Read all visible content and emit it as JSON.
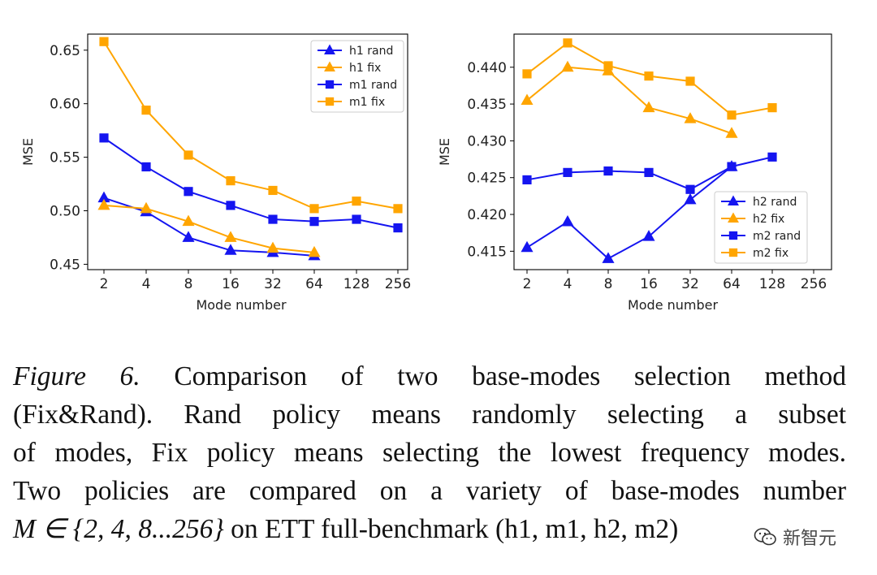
{
  "chart_data": [
    {
      "type": "line",
      "xlabel": "Mode number",
      "ylabel": "MSE",
      "categories": [
        "2",
        "4",
        "8",
        "16",
        "32",
        "64",
        "128",
        "256"
      ],
      "ylim": [
        0.445,
        0.665
      ],
      "yticks": [
        "0.45",
        "0.50",
        "0.55",
        "0.60",
        "0.65"
      ],
      "ytick_values": [
        0.45,
        0.5,
        0.55,
        0.6,
        0.65
      ],
      "legend_position": "top-right",
      "series": [
        {
          "name": "h1 rand",
          "color": "#1515f0",
          "marker": "triangle",
          "values": [
            0.512,
            0.499,
            0.475,
            0.463,
            0.461,
            0.458,
            null,
            null
          ]
        },
        {
          "name": "h1 fix",
          "color": "#ffa500",
          "marker": "triangle",
          "values": [
            0.505,
            0.502,
            0.49,
            0.475,
            0.465,
            0.461,
            null,
            null
          ]
        },
        {
          "name": "m1 rand",
          "color": "#1515f0",
          "marker": "square",
          "values": [
            0.568,
            0.541,
            0.518,
            0.505,
            0.492,
            0.49,
            0.492,
            0.484
          ]
        },
        {
          "name": "m1 fix",
          "color": "#ffa500",
          "marker": "square",
          "values": [
            0.658,
            0.594,
            0.552,
            0.528,
            0.519,
            0.502,
            0.509,
            0.502
          ]
        }
      ]
    },
    {
      "type": "line",
      "xlabel": "Mode number",
      "ylabel": "MSE",
      "categories": [
        "2",
        "4",
        "8",
        "16",
        "32",
        "64",
        "128",
        "256"
      ],
      "ylim": [
        0.4125,
        0.4445
      ],
      "yticks": [
        "0.415",
        "0.420",
        "0.425",
        "0.430",
        "0.435",
        "0.440"
      ],
      "ytick_values": [
        0.415,
        0.42,
        0.425,
        0.43,
        0.435,
        0.44
      ],
      "legend_position": "lower-right",
      "series": [
        {
          "name": "h2 rand",
          "color": "#1515f0",
          "marker": "triangle",
          "values": [
            0.4155,
            0.419,
            0.414,
            0.417,
            0.422,
            0.4265,
            null,
            null
          ]
        },
        {
          "name": "h2 fix",
          "color": "#ffa500",
          "marker": "triangle",
          "values": [
            0.4355,
            0.44,
            0.4395,
            0.4345,
            0.433,
            0.431,
            null,
            null
          ]
        },
        {
          "name": "m2 rand",
          "color": "#1515f0",
          "marker": "square",
          "values": [
            0.4247,
            0.4257,
            0.4259,
            0.4257,
            0.4234,
            0.4265,
            0.4278,
            null
          ]
        },
        {
          "name": "m2 fix",
          "color": "#ffa500",
          "marker": "square",
          "values": [
            0.4391,
            0.4433,
            0.4402,
            0.4388,
            0.4381,
            0.4335,
            0.4345,
            null
          ]
        }
      ]
    }
  ],
  "caption": {
    "figure_label": "Figure 6.",
    "line1_rest": "Comparison of two base-modes selection method",
    "line2": "(Fix&Rand). Rand policy means randomly selecting a subset",
    "line3": "of modes, Fix policy means selecting the lowest frequency modes.",
    "line4": "Two policies are compared on a variety of base-modes number",
    "line5_math": "M ∈ {2, 4, 8...256}",
    "line5_rest": "on ETT full-benchmark (h1, m1, h2, m2)"
  },
  "watermark": {
    "text": "新智元"
  }
}
